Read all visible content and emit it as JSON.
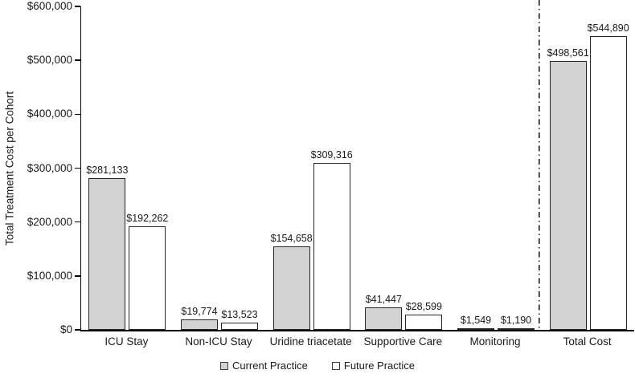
{
  "chart_data": {
    "type": "bar",
    "title": "",
    "ylabel": "Total Treatment Cost per Cohort",
    "xlabel": "",
    "ylim": [
      0,
      600000
    ],
    "ytick_step": 100000,
    "ytick_labels": [
      "$0",
      "$100,000",
      "$200,000",
      "$300,000",
      "$400,000",
      "$500,000",
      "$600,000"
    ],
    "grid": "off",
    "legend_position": "bottom-center",
    "categories": [
      "ICU Stay",
      "Non-ICU Stay",
      "Uridine triacetate",
      "Supportive Care",
      "Monitoring",
      "Total Cost"
    ],
    "series": [
      {
        "name": "Current Practice",
        "color": "#d2d2d2",
        "values": [
          281133,
          19774,
          154658,
          41447,
          1549,
          498561
        ],
        "value_labels": [
          "$281,133",
          "$19,774",
          "$154,658",
          "$41,447",
          "$1,549",
          "$498,561"
        ]
      },
      {
        "name": "Future Practice",
        "color": "#ffffff",
        "values": [
          192262,
          13523,
          309316,
          28599,
          1190,
          544890
        ],
        "value_labels": [
          "$192,262",
          "$13,523",
          "$309,316",
          "$28,599",
          "$1,190",
          "$544,890"
        ]
      }
    ],
    "separator": {
      "style": "dash-dot-vertical-line",
      "before_category": "Total Cost",
      "color": "#111111"
    },
    "bar_border_color": "#262626",
    "axis_color": "#000000"
  }
}
